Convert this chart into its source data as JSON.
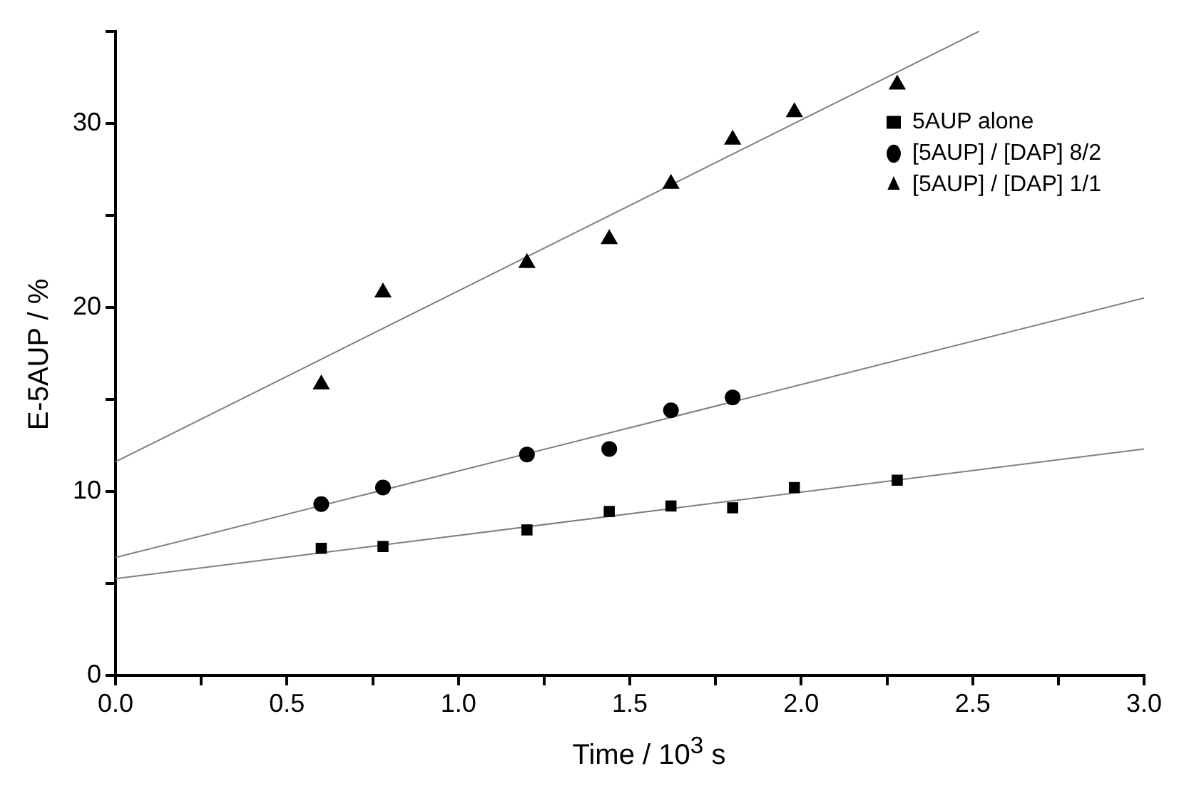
{
  "chart_data": {
    "type": "scatter",
    "xlabel": "Time / 10$^{3}$ s",
    "ylabel": "E-5AUP / %",
    "xlim": [
      0,
      3
    ],
    "ylim": [
      0,
      35
    ],
    "xticks": [
      {
        "value": 0,
        "label": "0.0"
      },
      {
        "value": 0.25,
        "label": null
      },
      0.5,
      {
        "value": 0.75,
        "label": null
      },
      {
        "value": 1,
        "label": "1.0"
      },
      {
        "value": 1.25,
        "label": null
      },
      1.5,
      {
        "value": 1.75,
        "label": null
      },
      {
        "value": 2,
        "label": "2.0"
      },
      {
        "value": 2.25,
        "label": null
      },
      2.5,
      {
        "value": 2.75,
        "label": null
      },
      {
        "value": 3,
        "label": "3.0"
      }
    ],
    "yticks": [
      0,
      {
        "value": 5,
        "label": null
      },
      10,
      {
        "value": 15,
        "label": null
      },
      20,
      {
        "value": 25,
        "label": null
      },
      30,
      {
        "value": 35,
        "label": null
      }
    ],
    "grid": false,
    "legend": "top right",
    "series": [
      {
        "name": "5AUP alone",
        "color": "#000000",
        "marker": "square",
        "x": [
          0.6,
          0.78,
          1.2,
          1.44,
          1.62,
          1.8,
          1.98,
          2.28
        ],
        "values": [
          6.9,
          7.0,
          7.9,
          8.9,
          9.2,
          9.1,
          10.2,
          10.6
        ]
      },
      {
        "name": "[5AUP] / [DAP] 8/2",
        "color": "#000000",
        "marker": "circle",
        "x": [
          0.6,
          0.78,
          1.2,
          1.44,
          1.62,
          1.8
        ],
        "values": [
          9.3,
          10.2,
          12.0,
          12.3,
          14.4,
          15.1
        ]
      },
      {
        "name": "[5AUP] / [DAP] 1/1",
        "color": "#000000",
        "marker": "triangle",
        "x": [
          0.6,
          0.78,
          1.2,
          1.44,
          1.62,
          1.8,
          1.98,
          2.28
        ],
        "values": [
          15.8,
          20.8,
          22.4,
          23.7,
          26.7,
          29.1,
          30.6,
          32.1
        ]
      },
      {
        "type": "line",
        "color": "#808080",
        "marker": "none",
        "x": [
          0,
          3
        ],
        "values": [
          5.25,
          12.3
        ]
      },
      {
        "type": "line",
        "color": "#808080",
        "marker": "none",
        "x": [
          0,
          3
        ],
        "values": [
          6.4,
          20.5
        ]
      },
      {
        "type": "line",
        "color": "#808080",
        "marker": "none",
        "x": [
          0,
          2.52
        ],
        "values": [
          11.6,
          35.0
        ]
      }
    ]
  }
}
